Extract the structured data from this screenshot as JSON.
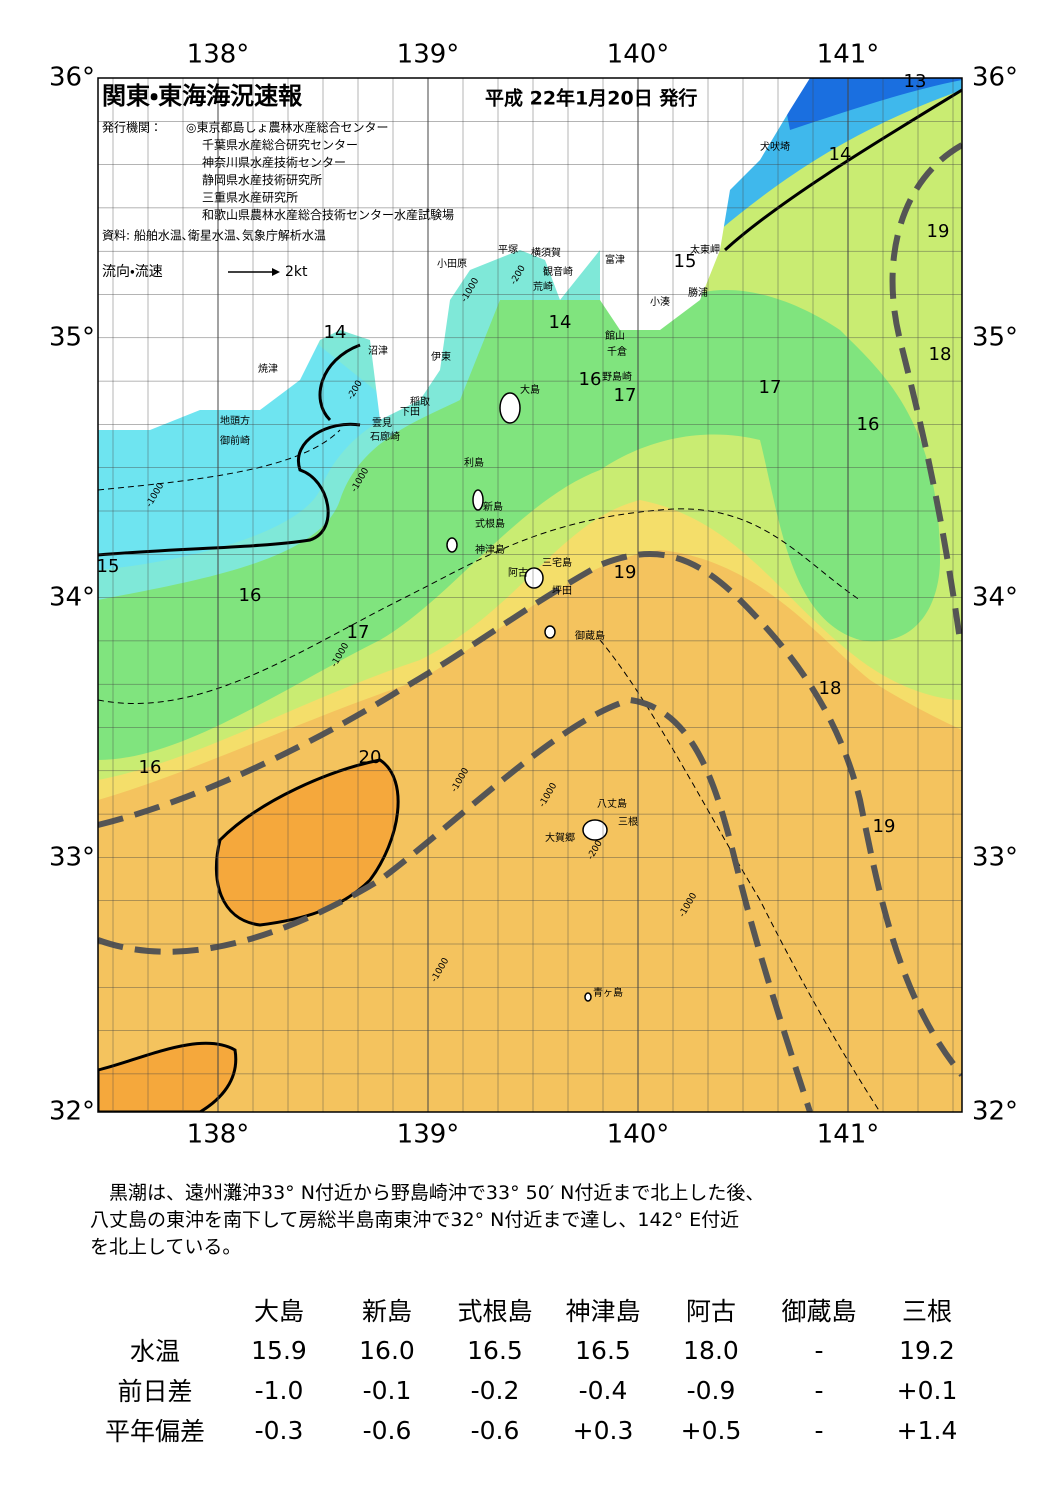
{
  "header": {
    "title": "関東・東海海況速報",
    "date": "平成 22年1月20日 発行",
    "issuers_label": "発行機関：",
    "issuers": [
      "◎東京都島しょ農林水産総合センター",
      "千葉県水産総合研究センター",
      "神奈川県水産技術センター",
      "静岡県水産技術研究所",
      "三重県水産研究所",
      "和歌山県農林水産総合技術センター水産試験場"
    ],
    "source": "資料: 船舶水温､衛星水温､気象庁解析水温",
    "legend_label": "流向・流速",
    "legend_speed": "2kt"
  },
  "map": {
    "lon_labels": [
      "138°",
      "139°",
      "140°",
      "141°"
    ],
    "lat_labels": [
      "36°",
      "35°",
      "34°",
      "33°",
      "32°"
    ],
    "places": [
      "犬吠埼",
      "太東岬",
      "勝浦",
      "小湊",
      "富津",
      "観音崎",
      "荒崎",
      "横須賀",
      "平塚",
      "小田原",
      "館山",
      "千倉",
      "野島崎",
      "沼津",
      "伊東",
      "焼津",
      "稲取",
      "下田",
      "雲見",
      "石廊崎",
      "地頭方",
      "御前崎",
      "大島",
      "利島",
      "新島",
      "式根島",
      "神津島",
      "三宅島",
      "阿古",
      "坪田",
      "御蔵島",
      "八丈島",
      "三根",
      "大賀郷",
      "青ヶ島"
    ],
    "contour_labels": [
      "13",
      "14",
      "15",
      "14",
      "14",
      "15",
      "16",
      "17",
      "16",
      "20",
      "16",
      "17",
      "17",
      "16",
      "18",
      "19",
      "19",
      "18",
      "19"
    ],
    "depth_labels": [
      "-200",
      "-1000",
      "-200",
      "-1000",
      "-1000",
      "-1000",
      "-1000",
      "-1000",
      "-1000",
      "-1000",
      "-200"
    ]
  },
  "summary": [
    "黒潮は、遠州灘沖33° N付近から野島崎沖で33° 50′ N付近まで北上した後、",
    "八丈島の東沖を南下して房総半島南東沖で32° N付近まで達し、142° E付近",
    "を北上している。"
  ],
  "table": {
    "columns": [
      "大島",
      "新島",
      "式根島",
      "神津島",
      "阿古",
      "御蔵島",
      "三根"
    ],
    "rows": [
      {
        "label": "水温",
        "cells": [
          "15.9",
          "16.0",
          "16.5",
          "16.5",
          "18.0",
          "-",
          "19.2"
        ]
      },
      {
        "label": "前日差",
        "cells": [
          "-1.0",
          "-0.1",
          "-0.2",
          "-0.4",
          "-0.9",
          "-",
          "+0.1"
        ]
      },
      {
        "label": "平年偏差",
        "cells": [
          "-0.3",
          "-0.6",
          "-0.6",
          "+0.3",
          "+0.5",
          "-",
          "+1.4"
        ]
      }
    ]
  }
}
